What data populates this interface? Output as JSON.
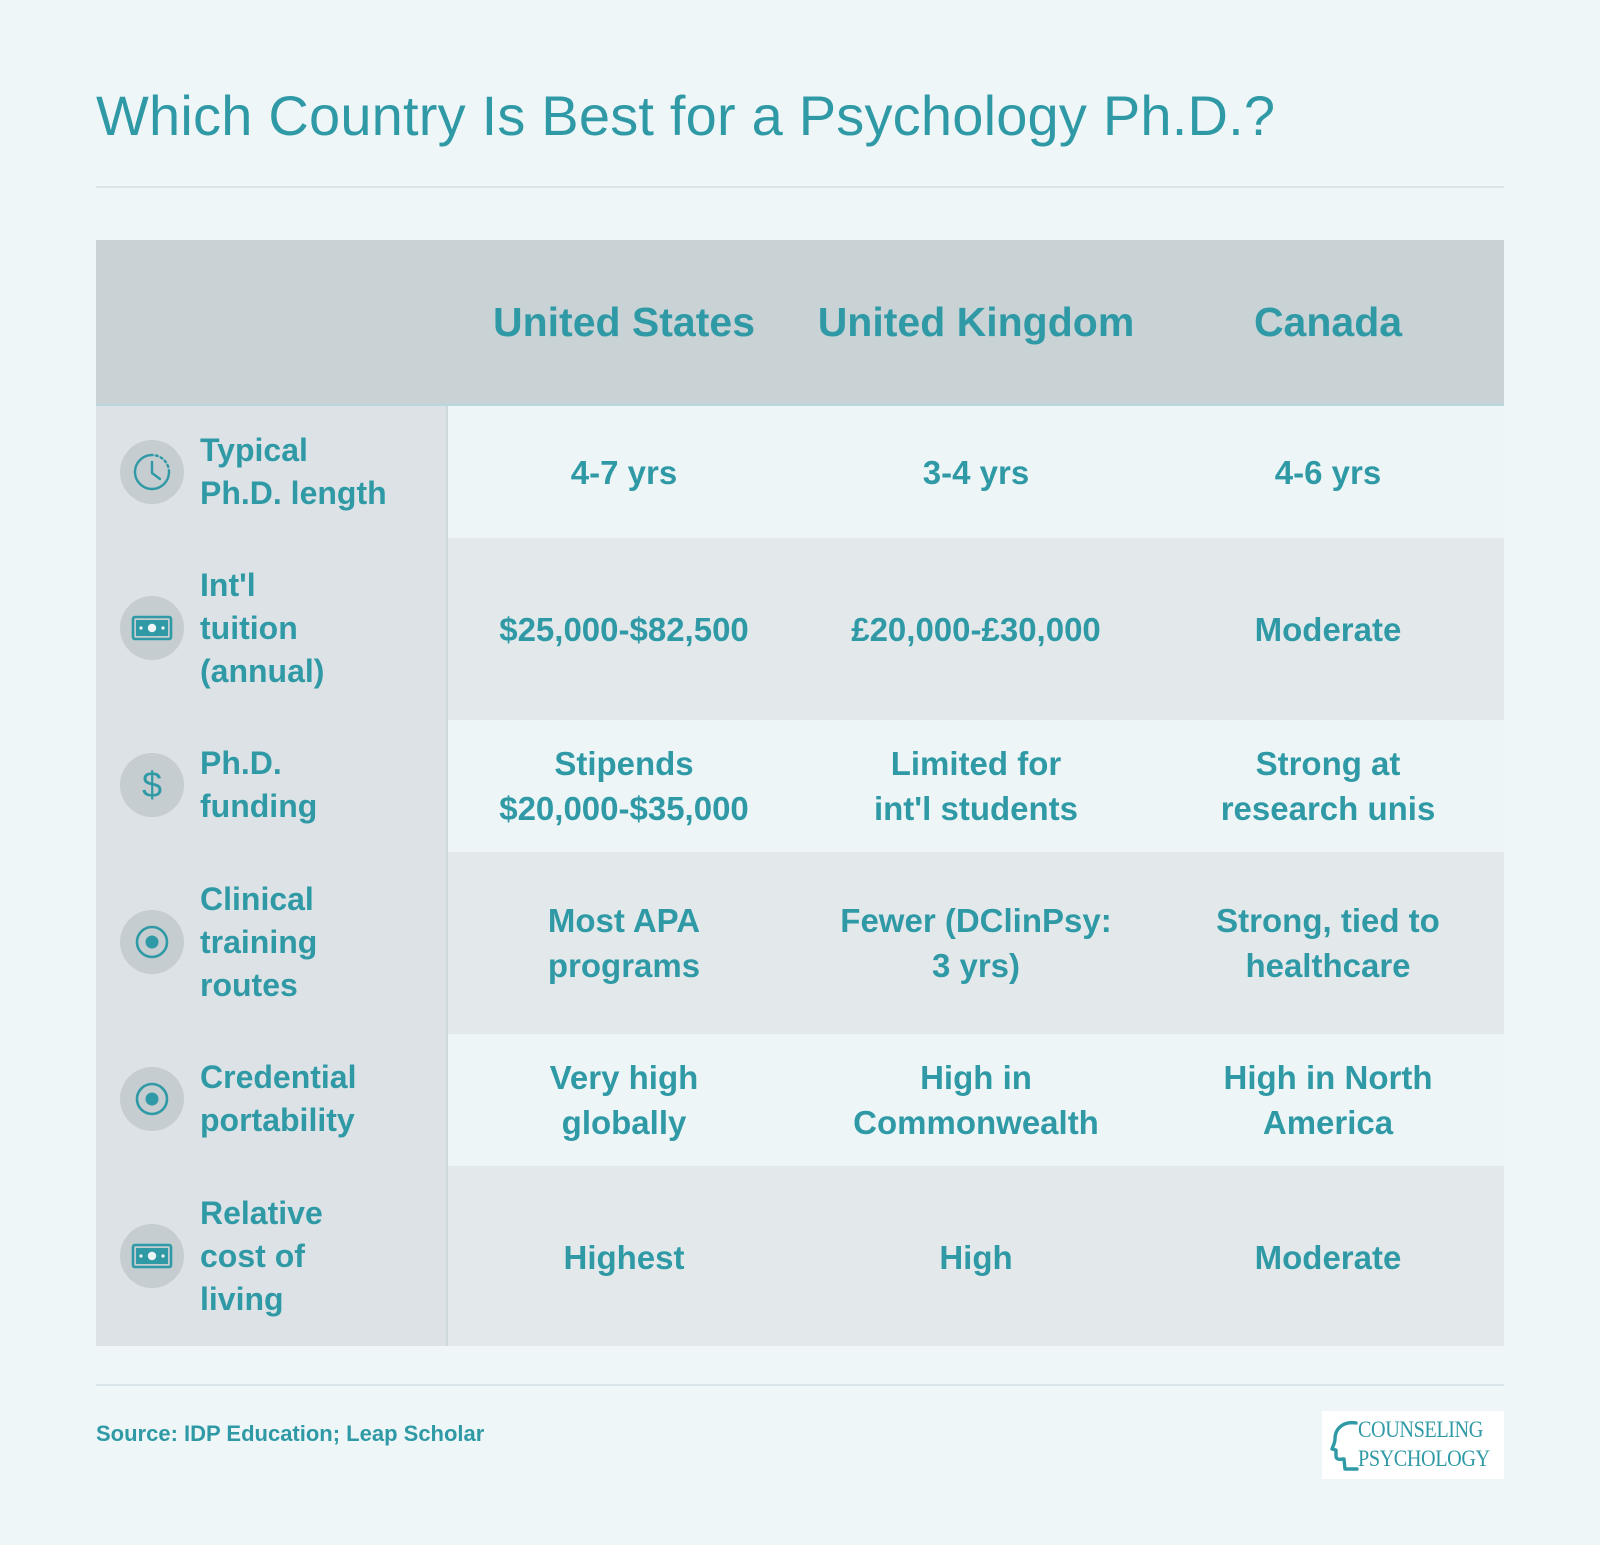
{
  "title": "Which Country Is Best for a Psychology Ph.D.?",
  "colors": {
    "accent": "#2f9aa6",
    "background": "#eff6f8",
    "header_bg": "#c9d2d5",
    "label_col_bg": "#dce2e5",
    "row_light": "#eef5f7",
    "row_dark": "#e3e9eb",
    "icon_circle": "#c5cdd0"
  },
  "chart_data": {
    "type": "table",
    "columns": [
      "United States",
      "United\nKingdom",
      "Canada"
    ],
    "rows": [
      {
        "label": "Typical\nPh.D. length",
        "icon": "clock-icon",
        "values": [
          "4-7 yrs",
          "3-4 yrs",
          "4-6 yrs"
        ]
      },
      {
        "label": "Int'l\ntuition\n(annual)",
        "icon": "money-bill-icon",
        "values": [
          "$25,000-$82,500",
          "£20,000-£30,000",
          "Moderate"
        ]
      },
      {
        "label": "Ph.D.\nfunding",
        "icon": "dollar-sign-icon",
        "values": [
          "Stipends\n$20,000-$35,000",
          "Limited for\nint'l students",
          "Strong at\nresearch unis"
        ]
      },
      {
        "label": "Clinical\ntraining\nroutes",
        "icon": "target-circle-icon",
        "values": [
          "Most APA\nprograms",
          "Fewer (DClinPsy:\n3 yrs)",
          "Strong, tied to\nhealthcare"
        ]
      },
      {
        "label": "Credential\nportability",
        "icon": "target-circle-icon",
        "values": [
          "Very high\nglobally",
          "High in\nCommonwealth",
          "High in North\nAmerica"
        ]
      },
      {
        "label": "Relative\ncost of\nliving",
        "icon": "money-bill-icon",
        "values": [
          "Highest",
          "High",
          "Moderate"
        ]
      }
    ]
  },
  "source": "Source: IDP Education; Leap Scholar",
  "logo": {
    "line1": "COUNSELING",
    "line2": "PSYCHOLOGY"
  }
}
